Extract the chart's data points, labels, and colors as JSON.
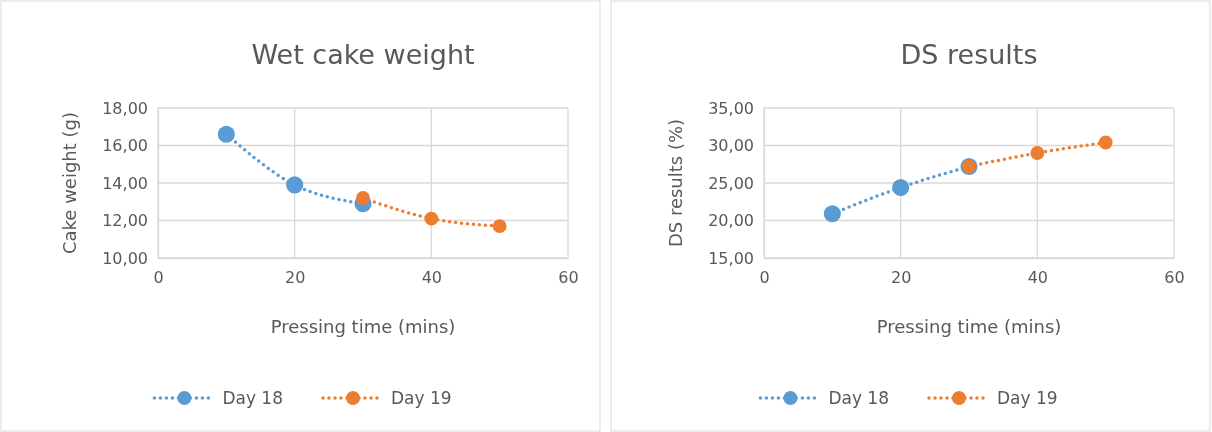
{
  "chart_data": [
    {
      "type": "line",
      "title": "Wet cake weight",
      "xlabel": "Pressing time (mins)",
      "ylabel": "Cake weight (g)",
      "xlim": [
        0,
        60
      ],
      "xticks": [
        0,
        20,
        40,
        60
      ],
      "ylim": [
        10,
        18
      ],
      "yticks": [
        {
          "value": 10,
          "label": "10,00"
        },
        {
          "value": 12,
          "label": "12,00"
        },
        {
          "value": 14,
          "label": "14,00"
        },
        {
          "value": 16,
          "label": "16,00"
        },
        {
          "value": 18,
          "label": "18,00"
        }
      ],
      "grid": true,
      "legend": "bottom",
      "marker": "circle",
      "line_style": "dotted",
      "series": [
        {
          "name": "Day 18",
          "color": "#5b9bd5",
          "x": [
            10,
            20,
            30
          ],
          "values": [
            16.6,
            13.9,
            12.9
          ]
        },
        {
          "name": "Day 19",
          "color": "#ed7d31",
          "x": [
            30,
            40,
            50
          ],
          "values": [
            13.2,
            12.1,
            11.7
          ]
        }
      ]
    },
    {
      "type": "line",
      "title": "DS results",
      "xlabel": "Pressing time (mins)",
      "ylabel": "DS results (%)",
      "xlim": [
        0,
        60
      ],
      "xticks": [
        0,
        20,
        40,
        60
      ],
      "ylim": [
        15,
        35
      ],
      "yticks": [
        {
          "value": 15,
          "label": "15,00"
        },
        {
          "value": 20,
          "label": "20,00"
        },
        {
          "value": 25,
          "label": "25,00"
        },
        {
          "value": 30,
          "label": "30,00"
        },
        {
          "value": 35,
          "label": "35,00"
        }
      ],
      "grid": true,
      "legend": "bottom",
      "marker": "circle",
      "line_style": "dotted",
      "series": [
        {
          "name": "Day 18",
          "color": "#5b9bd5",
          "x": [
            10,
            20,
            30
          ],
          "values": [
            20.9,
            24.4,
            27.2
          ]
        },
        {
          "name": "Day 19",
          "color": "#ed7d31",
          "x": [
            30,
            40,
            50
          ],
          "values": [
            27.2,
            29.0,
            30.4
          ]
        }
      ]
    }
  ]
}
